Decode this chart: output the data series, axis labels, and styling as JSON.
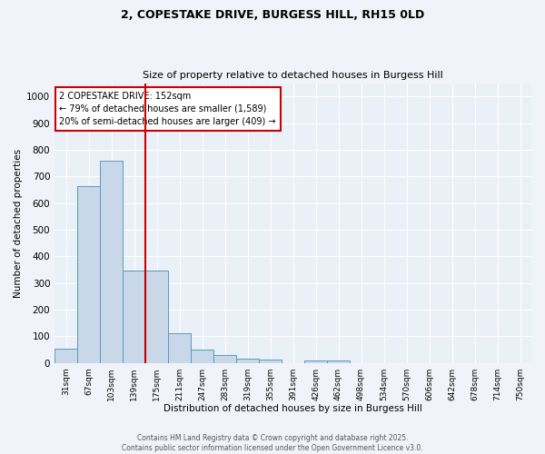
{
  "title_line1": "2, COPESTAKE DRIVE, BURGESS HILL, RH15 0LD",
  "title_line2": "Size of property relative to detached houses in Burgess Hill",
  "xlabel": "Distribution of detached houses by size in Burgess Hill",
  "ylabel": "Number of detached properties",
  "bar_labels": [
    "31sqm",
    "67sqm",
    "103sqm",
    "139sqm",
    "175sqm",
    "211sqm",
    "247sqm",
    "283sqm",
    "319sqm",
    "355sqm",
    "391sqm",
    "426sqm",
    "462sqm",
    "498sqm",
    "534sqm",
    "570sqm",
    "606sqm",
    "642sqm",
    "678sqm",
    "714sqm",
    "750sqm"
  ],
  "bar_values": [
    52,
    665,
    760,
    345,
    345,
    110,
    50,
    28,
    17,
    12,
    0,
    10,
    8,
    0,
    0,
    0,
    0,
    0,
    0,
    0,
    0
  ],
  "bar_color": "#c8d8e8",
  "bar_edge_color": "#5a9abf",
  "vline_color": "#cc0000",
  "annotation_title": "2 COPESTAKE DRIVE: 152sqm",
  "annotation_line1": "← 79% of detached houses are smaller (1,589)",
  "annotation_line2": "20% of semi-detached houses are larger (409) →",
  "annotation_box_color": "#ffffff",
  "annotation_box_edge": "#cc0000",
  "ylim": [
    0,
    1050
  ],
  "yticks": [
    0,
    100,
    200,
    300,
    400,
    500,
    600,
    700,
    800,
    900,
    1000
  ],
  "background_color": "#eaf0f8",
  "grid_color": "#ffffff",
  "fig_background": "#f0f4fa",
  "footer_line1": "Contains HM Land Registry data © Crown copyright and database right 2025.",
  "footer_line2": "Contains public sector information licensed under the Open Government Licence v3.0."
}
